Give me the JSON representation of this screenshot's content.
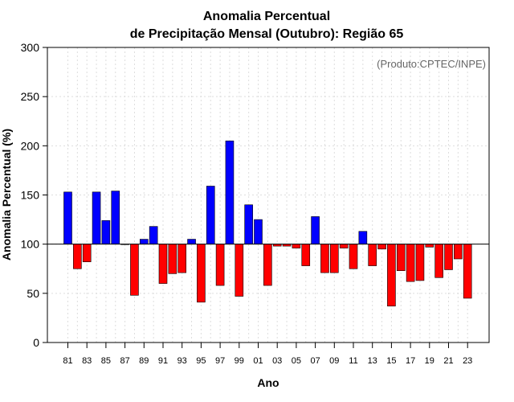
{
  "chart_data": {
    "type": "bar",
    "title_line1": "Anomalia Percentual",
    "title_line2": "de Precipitação Mensal (Outubro): Região 65",
    "xlabel": "Ano",
    "ylabel": "Anomalia Percentual (%)",
    "credit": "(Produto:CPTEC/INPE)",
    "ylim": [
      0,
      300
    ],
    "yticks": [
      0,
      50,
      100,
      150,
      200,
      250,
      300
    ],
    "baseline": 100,
    "grid": true,
    "categories": [
      "81",
      "82",
      "83",
      "84",
      "85",
      "86",
      "87",
      "88",
      "89",
      "90",
      "91",
      "92",
      "93",
      "94",
      "95",
      "96",
      "97",
      "98",
      "99",
      "00",
      "01",
      "02",
      "03",
      "04",
      "05",
      "06",
      "07",
      "08",
      "09",
      "10",
      "11",
      "12",
      "13",
      "14",
      "15",
      "16",
      "17",
      "18",
      "19",
      "20",
      "21",
      "22",
      "23"
    ],
    "xtick_labels": [
      "81",
      "83",
      "85",
      "87",
      "89",
      "91",
      "93",
      "95",
      "97",
      "99",
      "01",
      "03",
      "05",
      "07",
      "09",
      "11",
      "13",
      "15",
      "17",
      "19",
      "21",
      "23"
    ],
    "values": [
      153,
      75,
      82,
      153,
      124,
      154,
      100,
      48,
      105,
      118,
      60,
      70,
      71,
      105,
      41,
      159,
      58,
      205,
      47,
      140,
      125,
      58,
      98,
      98,
      96,
      78,
      128,
      71,
      71,
      96,
      75,
      113,
      78,
      95,
      37,
      73,
      62,
      63,
      97,
      66,
      74,
      85,
      45
    ],
    "colors": {
      "above": "#0000ff",
      "below": "#ff0000",
      "outline": "#000000",
      "grid": "#dddddd"
    }
  }
}
